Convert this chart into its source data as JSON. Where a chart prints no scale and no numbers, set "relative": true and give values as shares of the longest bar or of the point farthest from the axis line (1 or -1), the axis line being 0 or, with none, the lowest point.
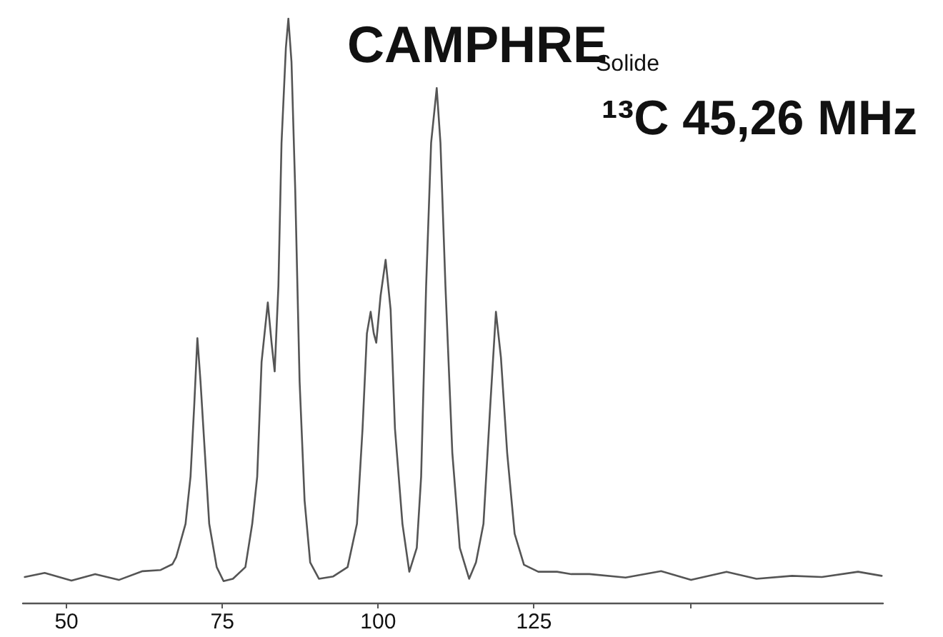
{
  "chart_data": {
    "type": "line",
    "title": "CAMPHRE",
    "subtitle": "Solide",
    "annotations": [
      "¹³C 45,26 MHz"
    ],
    "relative": true,
    "marker": "none",
    "line_style": "solid",
    "tick_labels": "x",
    "xlim": [
      43,
      181
    ],
    "xticks": [
      50,
      75,
      100,
      125,
      {
        "value": 150,
        "label": null
      }
    ],
    "series": [
      {
        "color": "#555555",
        "x": [
          43.3,
          46.5,
          50.8,
          54.6,
          58.4,
          62.2,
          65.1,
          67.0,
          67.6,
          69.1,
          69.9,
          70.5,
          71.0,
          71.5,
          72.2,
          72.9,
          74.1,
          75.2,
          76.7,
          78.7,
          79.8,
          80.6,
          81.3,
          82.3,
          82.9,
          83.4,
          84.0,
          84.5,
          85.2,
          85.6,
          86.1,
          86.7,
          87.4,
          88.2,
          89.1,
          90.5,
          92.8,
          95.1,
          96.6,
          97.5,
          98.2,
          98.8,
          99.3,
          99.7,
          100.4,
          101.2,
          102.0,
          102.7,
          103.9,
          105.0,
          106.2,
          106.9,
          107.7,
          108.5,
          109.4,
          110.0,
          110.8,
          111.9,
          113.1,
          114.6,
          115.7,
          116.9,
          118.0,
          118.9,
          119.7,
          120.7,
          121.9,
          123.4,
          125.7,
          128.7,
          131.0,
          133.9,
          139.7,
          145.4,
          150.2,
          155.9,
          160.7,
          166.4,
          171.2,
          177.0,
          180.8
        ],
        "values": [
          0.044,
          0.051,
          0.038,
          0.049,
          0.039,
          0.054,
          0.056,
          0.066,
          0.078,
          0.135,
          0.216,
          0.339,
          0.453,
          0.379,
          0.257,
          0.135,
          0.061,
          0.037,
          0.041,
          0.061,
          0.135,
          0.216,
          0.412,
          0.514,
          0.445,
          0.396,
          0.542,
          0.787,
          0.95,
          1,
          0.926,
          0.706,
          0.379,
          0.175,
          0.069,
          0.041,
          0.045,
          0.061,
          0.135,
          0.298,
          0.461,
          0.498,
          0.461,
          0.445,
          0.526,
          0.587,
          0.502,
          0.298,
          0.135,
          0.053,
          0.094,
          0.216,
          0.542,
          0.787,
          0.881,
          0.787,
          0.542,
          0.257,
          0.094,
          0.041,
          0.069,
          0.135,
          0.339,
          0.498,
          0.42,
          0.257,
          0.118,
          0.065,
          0.053,
          0.053,
          0.049,
          0.049,
          0.043,
          0.054,
          0.039,
          0.053,
          0.041,
          0.046,
          0.044,
          0.053,
          0.046
        ]
      }
    ]
  }
}
